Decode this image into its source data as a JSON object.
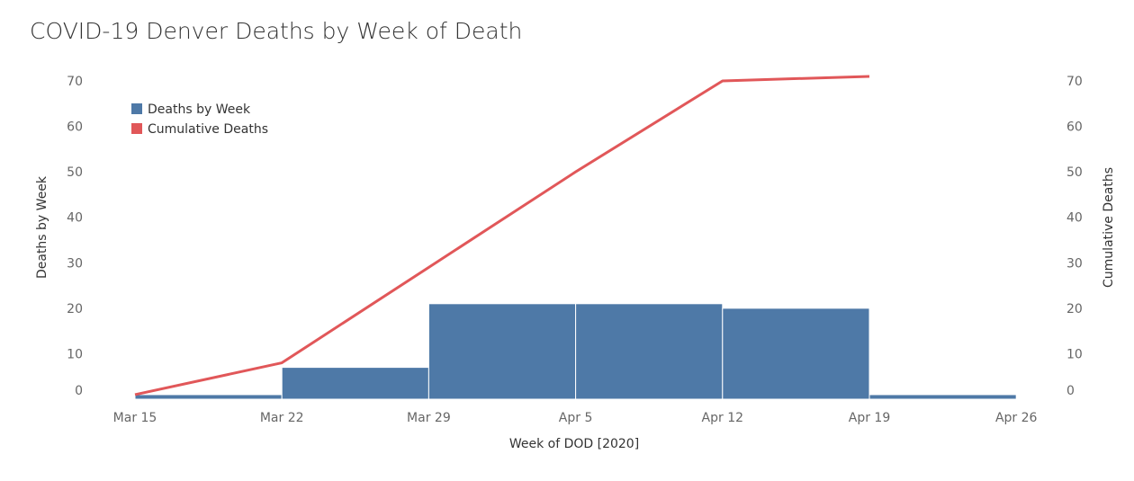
{
  "chart_data": {
    "type": "bar+line",
    "title": "COVID-19 Denver Deaths by Week of Death",
    "xlabel": "Week of DOD [2020]",
    "ylabel_left": "Deaths by Week",
    "ylabel_right": "Cumulative Deaths",
    "categories": [
      "Mar 15",
      "Mar 22",
      "Mar 29",
      "Apr 5",
      "Apr 12",
      "Apr 19"
    ],
    "x_ticks": [
      "Mar 15",
      "Mar 22",
      "Mar 29",
      "Apr 5",
      "Apr 12",
      "Apr 19",
      "Apr 26"
    ],
    "y_ticks": [
      0,
      10,
      20,
      30,
      40,
      50,
      60,
      70
    ],
    "ylim": [
      0,
      70
    ],
    "grid": false,
    "legend_placement": "top-left",
    "series": [
      {
        "name": "Deaths by Week",
        "type": "bar",
        "color": "#4e79a7",
        "values": [
          1,
          7,
          21,
          21,
          20,
          1
        ]
      },
      {
        "name": "Cumulative Deaths",
        "type": "line",
        "color": "#e15759",
        "values": [
          1,
          8,
          29,
          50,
          70,
          71
        ]
      }
    ]
  }
}
